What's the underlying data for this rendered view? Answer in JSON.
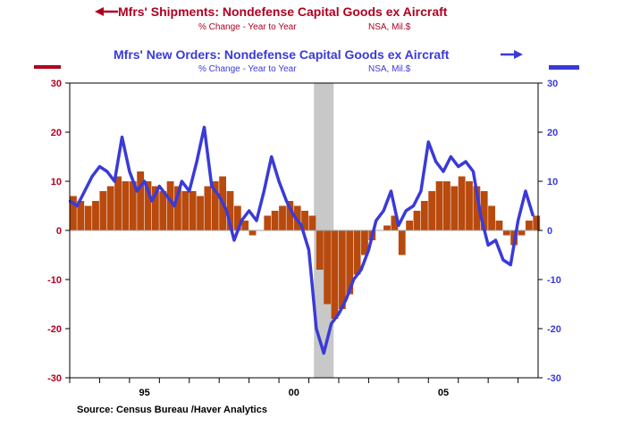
{
  "colors": {
    "shipments": "#b84a0e",
    "orders": "#3a3ad8",
    "left_axis": "#b00020",
    "right_axis": "#3a3ad8",
    "recession": "#c8c8c8",
    "frame": "#000000"
  },
  "legend": {
    "shipments_title": "Mfrs' Shipments: Nondefense Capital Goods ex Aircraft",
    "shipments_sub_left": "% Change - Year to Year",
    "shipments_sub_right": "NSA, Mil.$",
    "orders_title": "Mfrs' New Orders: Nondefense Capital Goods ex Aircraft",
    "orders_sub_left": "% Change - Year to Year",
    "orders_sub_right": "NSA, Mil.$"
  },
  "source": "Source:  Census Bureau /Haver Analytics",
  "chart_data": {
    "type": "bar",
    "x_range": [
      1993.0,
      2008.67
    ],
    "ylim": [
      -30,
      30
    ],
    "y_ticks": [
      -30,
      -20,
      -10,
      0,
      10,
      20,
      30
    ],
    "x_tick_labels": [
      {
        "x": 1995.5,
        "label": "95"
      },
      {
        "x": 2000.5,
        "label": "00"
      },
      {
        "x": 2005.5,
        "label": "05"
      }
    ],
    "recession": [
      2001.17,
      2001.83
    ],
    "grid": false,
    "series": [
      {
        "name": "Mfrs' Shipments: Nondefense Capital Goods ex Aircraft",
        "render": "bars",
        "axis": "left",
        "x": [
          1993.0,
          1993.25,
          1993.5,
          1993.75,
          1994.0,
          1994.25,
          1994.5,
          1994.75,
          1995.0,
          1995.25,
          1995.5,
          1995.75,
          1996.0,
          1996.25,
          1996.5,
          1996.75,
          1997.0,
          1997.25,
          1997.5,
          1997.75,
          1998.0,
          1998.25,
          1998.5,
          1998.75,
          1999.0,
          1999.25,
          1999.5,
          1999.75,
          2000.0,
          2000.25,
          2000.5,
          2000.75,
          2001.0,
          2001.25,
          2001.5,
          2001.75,
          2002.0,
          2002.25,
          2002.5,
          2002.75,
          2003.0,
          2003.25,
          2003.5,
          2003.75,
          2004.0,
          2004.25,
          2004.5,
          2004.75,
          2005.0,
          2005.25,
          2005.5,
          2005.75,
          2006.0,
          2006.25,
          2006.5,
          2006.75,
          2007.0,
          2007.25,
          2007.5,
          2007.75,
          2008.0,
          2008.25,
          2008.5
        ],
        "values": [
          7,
          6,
          5,
          6,
          8,
          9,
          11,
          10,
          10,
          12,
          10,
          9,
          8,
          10,
          9,
          8,
          8,
          7,
          9,
          10,
          11,
          8,
          5,
          2,
          -1,
          0,
          3,
          4,
          5,
          6,
          5,
          4,
          3,
          -8,
          -15,
          -18,
          -16,
          -13,
          -9,
          -5,
          -2,
          0,
          1,
          3,
          -5,
          2,
          4,
          6,
          8,
          10,
          10,
          9,
          11,
          10,
          9,
          8,
          5,
          2,
          -1,
          -3,
          -1,
          2,
          3
        ]
      },
      {
        "name": "Mfrs' New Orders: Nondefense Capital Goods ex Aircraft",
        "render": "line",
        "axis": "right",
        "x": [
          1993.0,
          1993.25,
          1993.5,
          1993.75,
          1994.0,
          1994.25,
          1994.5,
          1994.75,
          1995.0,
          1995.25,
          1995.5,
          1995.75,
          1996.0,
          1996.25,
          1996.5,
          1996.75,
          1997.0,
          1997.25,
          1997.5,
          1997.75,
          1998.0,
          1998.25,
          1998.5,
          1998.75,
          1999.0,
          1999.25,
          1999.5,
          1999.75,
          2000.0,
          2000.25,
          2000.5,
          2000.75,
          2001.0,
          2001.25,
          2001.5,
          2001.75,
          2002.0,
          2002.25,
          2002.5,
          2002.75,
          2003.0,
          2003.25,
          2003.5,
          2003.75,
          2004.0,
          2004.25,
          2004.5,
          2004.75,
          2005.0,
          2005.25,
          2005.5,
          2005.75,
          2006.0,
          2006.25,
          2006.5,
          2006.75,
          2007.0,
          2007.25,
          2007.5,
          2007.75,
          2008.0,
          2008.25,
          2008.5
        ],
        "values": [
          6,
          5,
          8,
          11,
          13,
          12,
          10,
          19,
          12,
          8,
          10,
          6,
          9,
          7,
          5,
          10,
          8,
          14,
          21,
          9,
          7,
          4,
          -2,
          2,
          4,
          2,
          8,
          15,
          10,
          6,
          3,
          1,
          -4,
          -20,
          -25,
          -19,
          -17,
          -14,
          -10,
          -8,
          -4,
          2,
          4,
          8,
          1,
          4,
          5,
          8,
          18,
          14,
          12,
          15,
          13,
          14,
          12,
          3,
          -3,
          -2,
          -6,
          -7,
          2,
          8,
          3
        ]
      }
    ]
  }
}
